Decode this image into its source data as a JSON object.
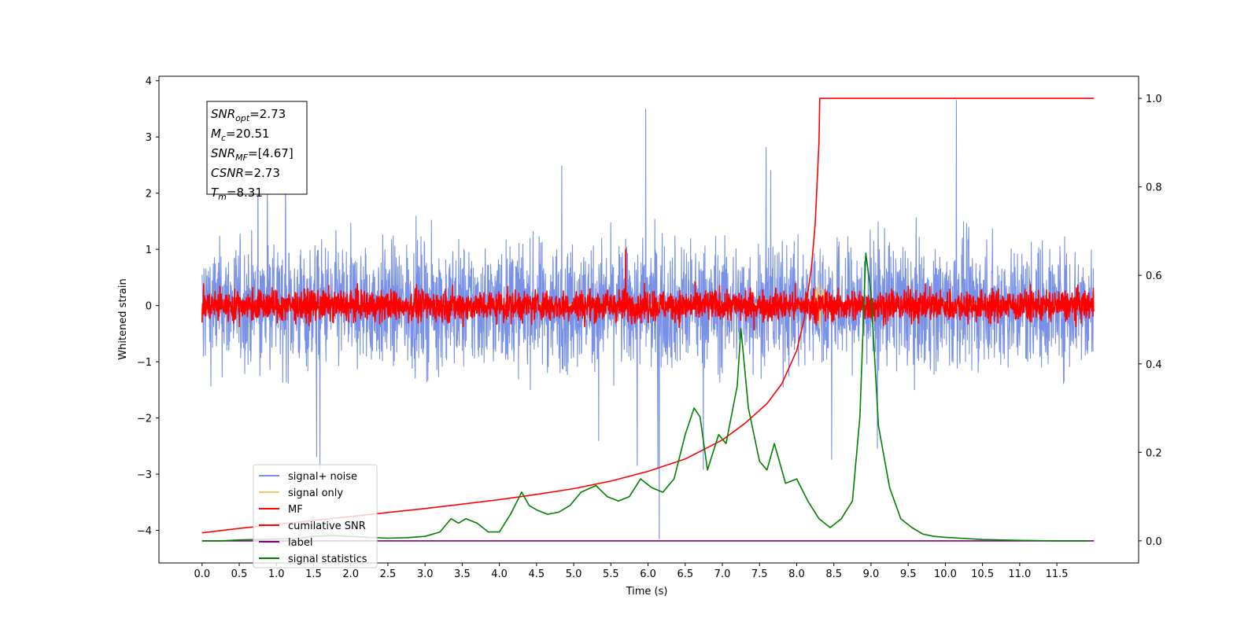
{
  "chart_data": {
    "type": "line",
    "xlabel": "Time (s)",
    "ylabel": "Whitened strain",
    "xlim": [
      -0.58,
      12.6
    ],
    "ylim": [
      -4.58,
      4.08
    ],
    "ylim_right": [
      -0.05,
      1.05
    ],
    "x_ticks": [
      "0.0",
      "0.5",
      "1.0",
      "1.5",
      "2.0",
      "2.5",
      "3.0",
      "3.5",
      "4.0",
      "4.5",
      "5.0",
      "5.5",
      "6.0",
      "6.5",
      "7.0",
      "7.5",
      "8.0",
      "8.5",
      "9.0",
      "9.5",
      "10.0",
      "10.5",
      "11.0",
      "11.5"
    ],
    "y_ticks": [
      "4",
      "3",
      "2",
      "1",
      "0",
      "−1",
      "−2",
      "−3",
      "−4"
    ],
    "y_ticks_right": [
      "0.0",
      "0.2",
      "0.4",
      "0.6",
      "0.8",
      "1.0"
    ],
    "legend_position": "lower-left",
    "info_box": {
      "lines": [
        {
          "name": "SNR",
          "sub": "opt",
          "value": "=2.73"
        },
        {
          "name": "M",
          "sub": "c",
          "value": "=20.51"
        },
        {
          "name": "SNR",
          "sub": "MF",
          "value": "=[4.67]"
        },
        {
          "name": "CSNR",
          "sub": "",
          "value": "=2.73"
        },
        {
          "name": "T",
          "sub": "m",
          "value": "=8.31"
        }
      ]
    },
    "series": [
      {
        "name": "signal+ noise",
        "color": "#7890e6",
        "axis": "left",
        "kind": "noise",
        "t_range": [
          0,
          12
        ],
        "amplitude": 1.0,
        "extremes": [
          [
            6.15,
            -4.15
          ],
          [
            10.15,
            3.65
          ],
          [
            5.97,
            3.5
          ],
          [
            0.02,
            -0.9
          ]
        ]
      },
      {
        "name": "signal only",
        "color": "#f5c96b",
        "axis": "left",
        "kind": "signal",
        "t_range": [
          0,
          12
        ],
        "amplitude": 0.03,
        "extremes": [
          [
            8.3,
            -0.45
          ],
          [
            8.3,
            0.4
          ]
        ]
      },
      {
        "name": "MF",
        "color": "#ff0000",
        "axis": "left",
        "kind": "noise",
        "t_range": [
          0,
          12
        ],
        "amplitude": 0.25,
        "extremes": [
          [
            5.7,
            1.0
          ],
          [
            0.0,
            -0.3
          ]
        ]
      },
      {
        "name": "cumilative SNR",
        "color": "#ff0000",
        "axis": "right",
        "x": [
          0.0,
          0.5,
          1.0,
          1.5,
          2.0,
          2.5,
          3.0,
          3.5,
          4.0,
          4.5,
          5.0,
          5.5,
          6.0,
          6.5,
          7.0,
          7.3,
          7.6,
          7.8,
          8.0,
          8.1,
          8.2,
          8.25,
          8.3,
          8.31,
          12.0
        ],
        "y": [
          0.018,
          0.028,
          0.037,
          0.046,
          0.055,
          0.064,
          0.073,
          0.083,
          0.093,
          0.105,
          0.118,
          0.135,
          0.157,
          0.185,
          0.228,
          0.265,
          0.31,
          0.355,
          0.43,
          0.5,
          0.62,
          0.72,
          0.9,
          1.0,
          1.0
        ]
      },
      {
        "name": "label",
        "color": "#800080",
        "axis": "right",
        "x": [
          0.0,
          12.0
        ],
        "y": [
          0.0,
          0.0
        ]
      },
      {
        "name": "signal statistics",
        "color": "#008000",
        "axis": "right",
        "x": [
          0.0,
          0.25,
          0.5,
          0.75,
          1.0,
          1.25,
          1.5,
          1.75,
          2.0,
          2.25,
          2.5,
          2.75,
          3.0,
          3.2,
          3.35,
          3.45,
          3.55,
          3.7,
          3.85,
          4.0,
          4.15,
          4.3,
          4.4,
          4.5,
          4.65,
          4.8,
          4.95,
          5.1,
          5.3,
          5.45,
          5.6,
          5.75,
          5.9,
          6.05,
          6.2,
          6.35,
          6.5,
          6.62,
          6.7,
          6.8,
          6.95,
          7.05,
          7.2,
          7.25,
          7.35,
          7.5,
          7.6,
          7.7,
          7.85,
          8.0,
          8.15,
          8.3,
          8.45,
          8.6,
          8.75,
          8.85,
          8.93,
          9.0,
          9.1,
          9.25,
          9.4,
          9.55,
          9.7,
          9.85,
          10.0,
          10.2,
          10.5,
          11.0,
          11.5,
          11.95
        ],
        "y": [
          0.0,
          0.0,
          0.002,
          0.003,
          0.004,
          0.005,
          0.01,
          0.012,
          0.01,
          0.008,
          0.006,
          0.007,
          0.01,
          0.02,
          0.05,
          0.04,
          0.05,
          0.04,
          0.02,
          0.02,
          0.06,
          0.11,
          0.08,
          0.07,
          0.06,
          0.065,
          0.08,
          0.11,
          0.125,
          0.1,
          0.09,
          0.1,
          0.14,
          0.12,
          0.11,
          0.14,
          0.24,
          0.3,
          0.28,
          0.16,
          0.24,
          0.22,
          0.35,
          0.48,
          0.3,
          0.18,
          0.16,
          0.22,
          0.13,
          0.14,
          0.09,
          0.05,
          0.03,
          0.05,
          0.09,
          0.28,
          0.65,
          0.56,
          0.26,
          0.12,
          0.05,
          0.03,
          0.015,
          0.01,
          0.008,
          0.006,
          0.003,
          0.001,
          0.0,
          0.0
        ]
      }
    ]
  }
}
